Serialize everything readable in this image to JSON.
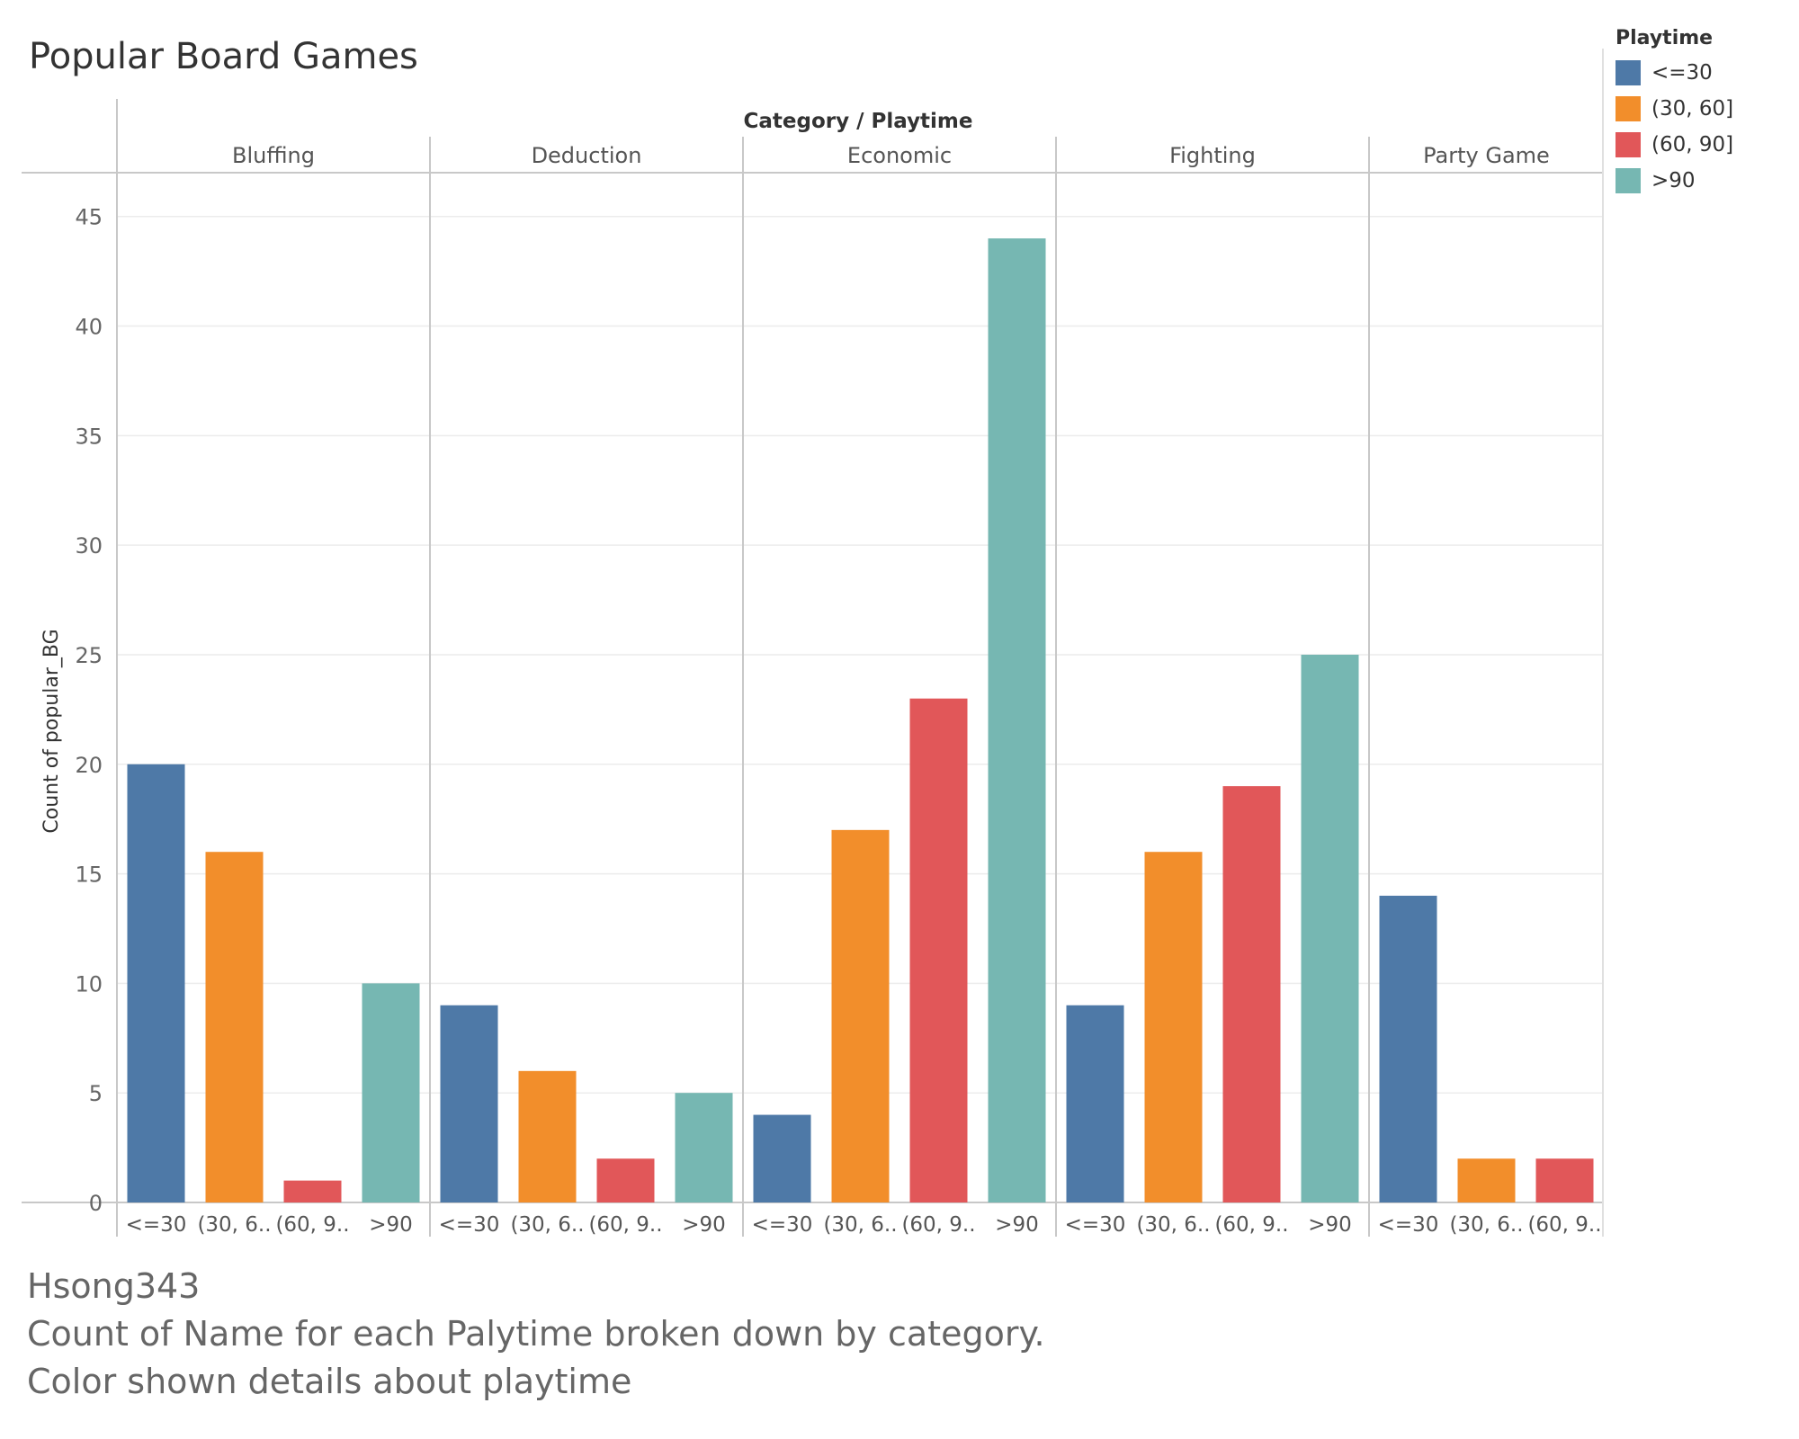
{
  "chart_data": {
    "type": "bar",
    "title": "Popular Board Games",
    "header_label": "Category / Playtime",
    "ylabel": "Count of popular_BG",
    "ylim": [
      0,
      47
    ],
    "yticks": [
      0,
      5,
      10,
      15,
      20,
      25,
      30,
      35,
      40,
      45
    ],
    "grid": true,
    "legend_title": "Playtime",
    "legend_placement": "top-right",
    "groups": [
      {
        "name": "Bluffing",
        "bars": [
          {
            "playtime": "<=30",
            "tick": "<=30",
            "value": 20
          },
          {
            "playtime": "(30, 60]",
            "tick": "(30, 6..",
            "value": 16
          },
          {
            "playtime": "(60, 90]",
            "tick": "(60, 9..",
            "value": 1
          },
          {
            "playtime": ">90",
            "tick": ">90",
            "value": 10
          }
        ]
      },
      {
        "name": "Deduction",
        "bars": [
          {
            "playtime": "<=30",
            "tick": "<=30",
            "value": 9
          },
          {
            "playtime": "(30, 60]",
            "tick": "(30, 6..",
            "value": 6
          },
          {
            "playtime": "(60, 90]",
            "tick": "(60, 9..",
            "value": 2
          },
          {
            "playtime": ">90",
            "tick": ">90",
            "value": 5
          }
        ]
      },
      {
        "name": "Economic",
        "bars": [
          {
            "playtime": "<=30",
            "tick": "<=30",
            "value": 4
          },
          {
            "playtime": "(30, 60]",
            "tick": "(30, 6..",
            "value": 17
          },
          {
            "playtime": "(60, 90]",
            "tick": "(60, 9..",
            "value": 23
          },
          {
            "playtime": ">90",
            "tick": ">90",
            "value": 44
          }
        ]
      },
      {
        "name": "Fighting",
        "bars": [
          {
            "playtime": "<=30",
            "tick": "<=30",
            "value": 9
          },
          {
            "playtime": "(30, 60]",
            "tick": "(30, 6..",
            "value": 16
          },
          {
            "playtime": "(60, 90]",
            "tick": "(60, 9..",
            "value": 19
          },
          {
            "playtime": ">90",
            "tick": ">90",
            "value": 25
          }
        ]
      },
      {
        "name": "Party Game",
        "bars": [
          {
            "playtime": "<=30",
            "tick": "<=30",
            "value": 14
          },
          {
            "playtime": "(30, 60]",
            "tick": "(30, 6..",
            "value": 2
          },
          {
            "playtime": "(60, 90]",
            "tick": "(60, 9..",
            "value": 2
          }
        ]
      }
    ],
    "legend": [
      {
        "label": "<=30",
        "color": "#4e79a7"
      },
      {
        "label": "(30, 60]",
        "color": "#f28e2b"
      },
      {
        "label": "(60, 90]",
        "color": "#e15759"
      },
      {
        "label": ">90",
        "color": "#76b7b2"
      }
    ]
  },
  "caption": {
    "author": "Hsong343",
    "line1": "Count of Name for each Palytime broken down by category.",
    "line2": "Color shown details about playtime"
  }
}
